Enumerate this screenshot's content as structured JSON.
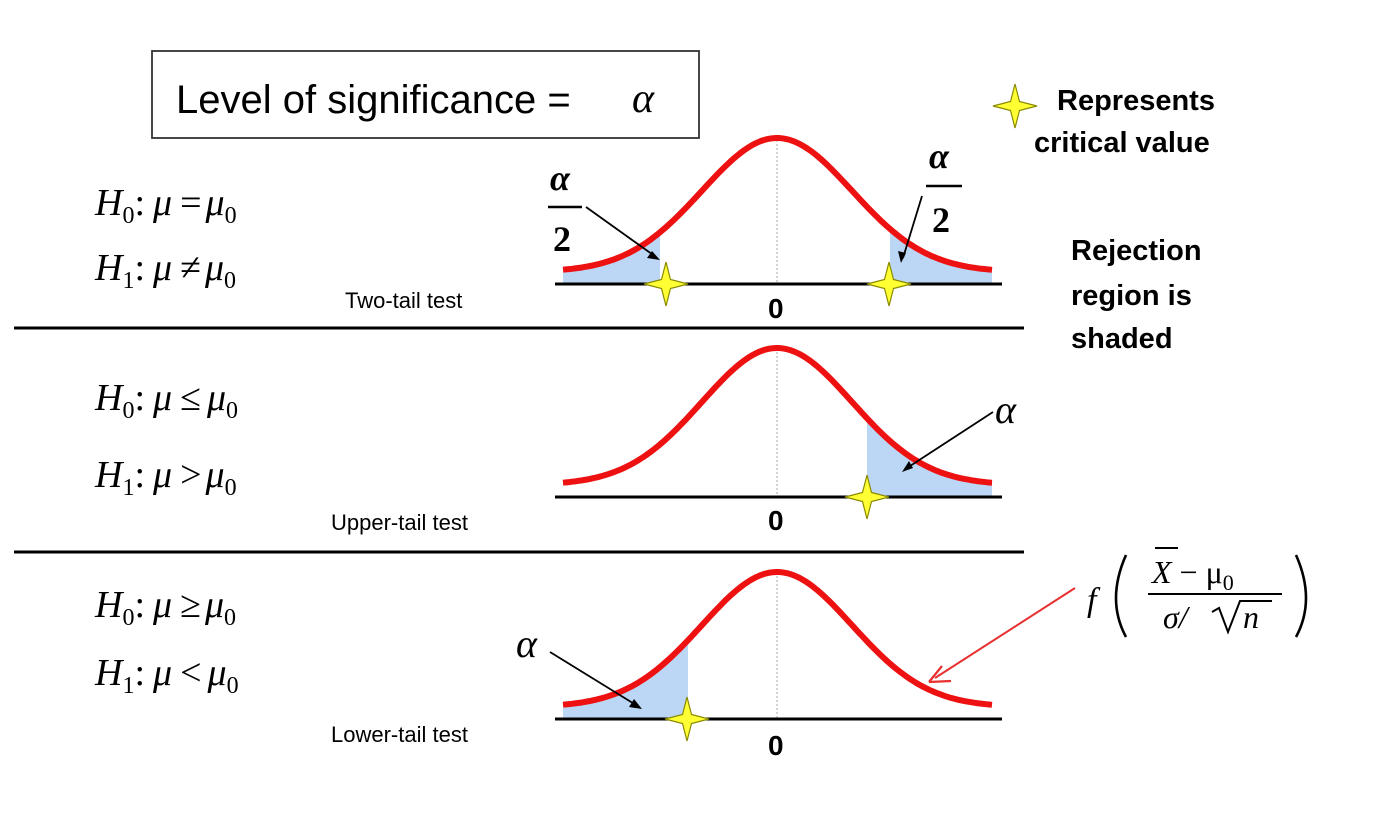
{
  "title_box": {
    "text": "Level of significance = ",
    "symbol": "α"
  },
  "legend": {
    "line1": "Represents",
    "line2": "critical value",
    "star_color": "#ffff33"
  },
  "rejection_note": {
    "line1": "Rejection",
    "line2": "region is",
    "line3": "shaded"
  },
  "panels": [
    {
      "id": "two-tail",
      "h0": {
        "rel": "="
      },
      "h1": {
        "rel": "≠"
      },
      "test_label": "Two-tail test",
      "center_label": "0",
      "tail_label_left": {
        "num": "α",
        "den": "2"
      },
      "tail_label_right": {
        "num": "α",
        "den": "2"
      }
    },
    {
      "id": "upper-tail",
      "h0": {
        "rel": "≤"
      },
      "h1": {
        "rel": ">"
      },
      "test_label": "Upper-tail test",
      "center_label": "0",
      "tail_label": "α"
    },
    {
      "id": "lower-tail",
      "h0": {
        "rel": "≥"
      },
      "h1": {
        "rel": "<"
      },
      "test_label": "Lower-tail test",
      "center_label": "0",
      "tail_label": "α"
    }
  ],
  "hypothesis_symbols": {
    "h": "H",
    "sub0": "0",
    "sub1": "1",
    "colon": ":",
    "mu": "μ",
    "mu0_sub": "0"
  },
  "formula": {
    "f": "f",
    "numer_x": "X",
    "numer_minus": " − μ",
    "numer_sub": "0",
    "denom_sigma": "σ/",
    "denom_n": "n"
  },
  "colors": {
    "curve": "#ee1111",
    "shade": "#bcd7f5",
    "arrow_red": "#e83030",
    "axis": "#000000"
  }
}
